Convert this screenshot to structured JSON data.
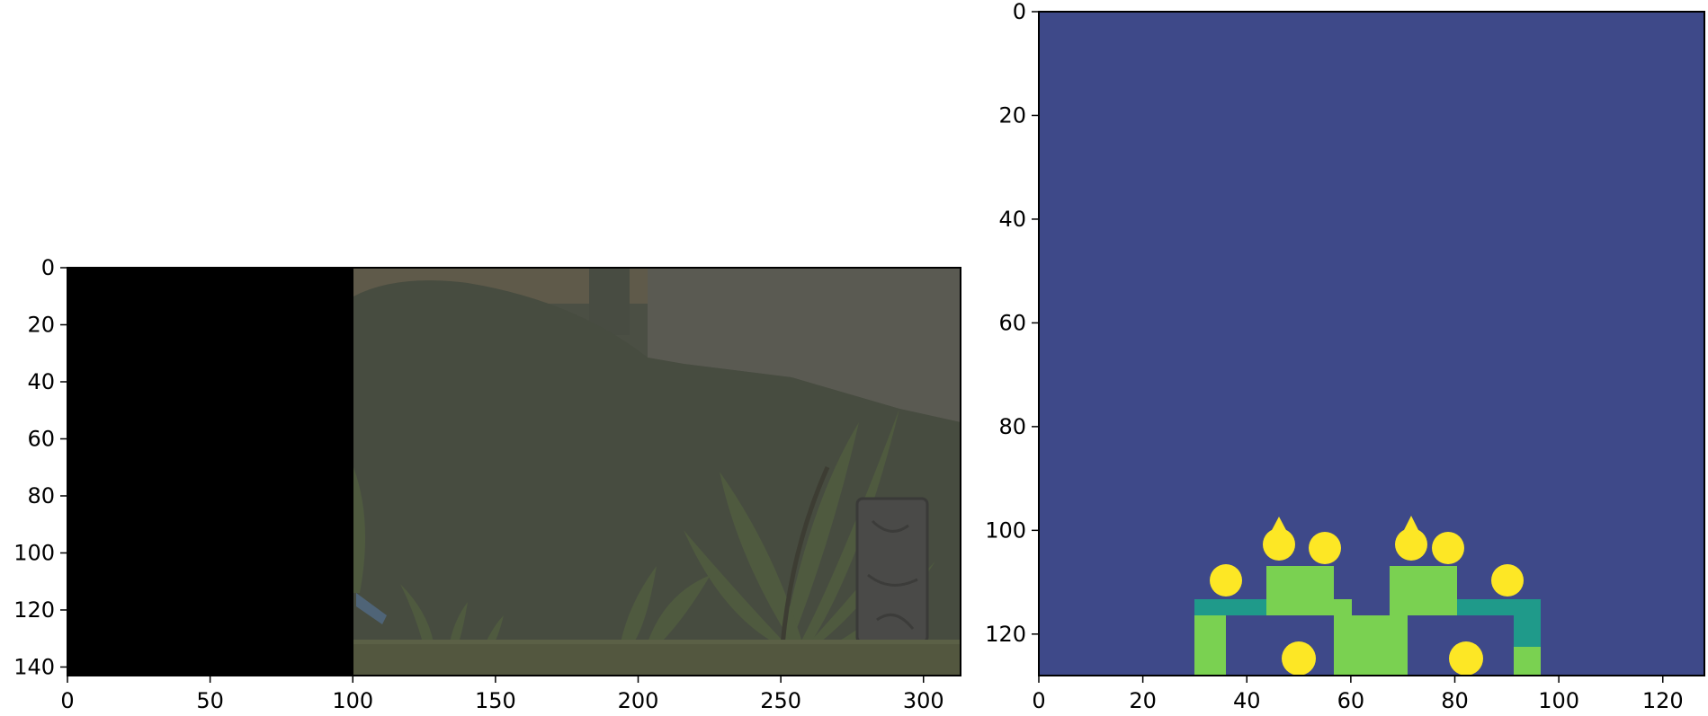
{
  "figure": {
    "panels": [
      {
        "name": "game-frame",
        "x_ticks": [
          "0",
          "50",
          "100",
          "150",
          "200",
          "250",
          "300"
        ],
        "y_ticks": [
          "0",
          "20",
          "40",
          "60",
          "80",
          "100",
          "120",
          "140"
        ],
        "x_range": [
          0,
          313
        ],
        "y_range": [
          0,
          143
        ],
        "content": "rgb image: black left strip, dimmed jungle scene with plants and stone pillar"
      },
      {
        "name": "segmentation-map",
        "x_ticks": [
          "0",
          "20",
          "40",
          "60",
          "80",
          "100",
          "120"
        ],
        "y_ticks": [
          "0",
          "20",
          "40",
          "60",
          "80",
          "100",
          "120"
        ],
        "x_range": [
          0,
          128
        ],
        "y_range": [
          0,
          128
        ],
        "content": "viridis-colored mask: two symmetric green structures with yellow blobs at bottom"
      }
    ]
  },
  "colors": {
    "mask_background": "#3e4989",
    "mask_light_green": "#7ad151",
    "mask_teal": "#1f9a8a",
    "mask_yellow": "#fde725",
    "frame_black": "#000000",
    "scene_base": "#4b4f44"
  }
}
